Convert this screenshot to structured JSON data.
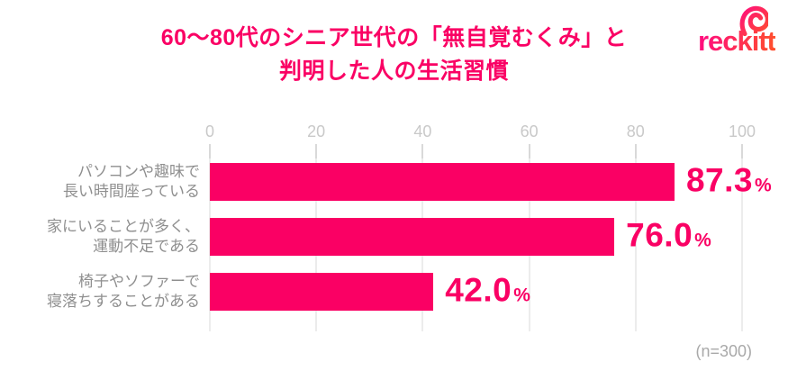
{
  "theme": {
    "accent": "#fa0064",
    "axis_label": "#c9c9c9",
    "tick": "#d9d9d9",
    "grid": "#ececec",
    "category_label": "#8f8f8f",
    "note": "#a9a9a9",
    "background": "#ffffff",
    "logo_start": "#ff0f7b",
    "logo_end": "#ff4e2e"
  },
  "title": {
    "lines": [
      "60～80代のシニア世代の「無自覚むくみ」と",
      "判明した人の生活習慣"
    ]
  },
  "logo": {
    "wordmark": "reckitt",
    "icon": "reckitt-swirl-icon"
  },
  "chart_data": {
    "type": "bar",
    "orientation": "horizontal",
    "title": "60～80代のシニア世代の「無自覚むくみ」と判明した人の生活習慣",
    "categories": [
      "パソコンや趣味で長い時間座っている",
      "家にいることが多く、運動不足である",
      "椅子やソファーで寝落ちすることがある"
    ],
    "category_lines": [
      [
        "パソコンや趣味で",
        "長い時間座っている"
      ],
      [
        "家にいることが多く、",
        "運動不足である"
      ],
      [
        "椅子やソファーで",
        "寝落ちすることがある"
      ]
    ],
    "values": [
      87.3,
      76.0,
      42.0
    ],
    "value_labels": [
      "87.3",
      "76.0",
      "42.0"
    ],
    "unit": "%",
    "x_ticks": [
      0,
      20,
      40,
      60,
      80,
      100
    ],
    "xlim": [
      0,
      100
    ],
    "grid": true,
    "legend": false,
    "bar_color": "#fa0064",
    "note": "(n=300)"
  }
}
